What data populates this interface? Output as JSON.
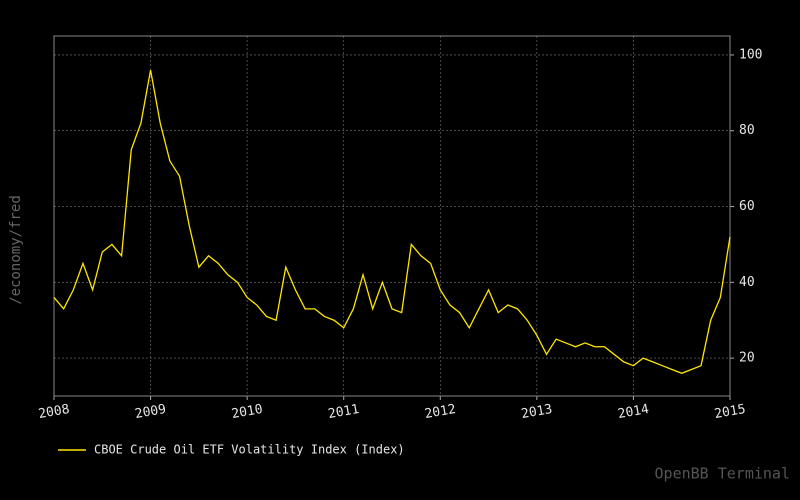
{
  "chart_data": {
    "type": "line",
    "ylabel": "/economy/fred",
    "watermark": "OpenBB Terminal",
    "x": [
      2008.0,
      2008.1,
      2008.2,
      2008.3,
      2008.4,
      2008.5,
      2008.6,
      2008.7,
      2008.8,
      2008.9,
      2009.0,
      2009.1,
      2009.2,
      2009.3,
      2009.4,
      2009.5,
      2009.6,
      2009.7,
      2009.8,
      2009.9,
      2010.0,
      2010.1,
      2010.2,
      2010.3,
      2010.4,
      2010.5,
      2010.6,
      2010.7,
      2010.8,
      2010.9,
      2011.0,
      2011.1,
      2011.2,
      2011.3,
      2011.4,
      2011.5,
      2011.6,
      2011.7,
      2011.8,
      2011.9,
      2012.0,
      2012.1,
      2012.2,
      2012.3,
      2012.4,
      2012.5,
      2012.6,
      2012.7,
      2012.8,
      2012.9,
      2013.0,
      2013.1,
      2013.2,
      2013.3,
      2013.4,
      2013.5,
      2013.6,
      2013.7,
      2013.8,
      2013.9,
      2014.0,
      2014.1,
      2014.2,
      2014.3,
      2014.4,
      2014.5,
      2014.6,
      2014.7,
      2014.8,
      2014.9,
      2015.0
    ],
    "series": [
      {
        "name": "CBOE Crude Oil ETF Volatility Index (Index)",
        "color": "#ffe600",
        "values": [
          36,
          33,
          38,
          45,
          38,
          48,
          50,
          47,
          75,
          82,
          96,
          82,
          72,
          68,
          55,
          44,
          47,
          45,
          42,
          40,
          36,
          34,
          31,
          30,
          44,
          38,
          33,
          33,
          31,
          30,
          28,
          33,
          42,
          33,
          40,
          33,
          32,
          50,
          47,
          45,
          38,
          34,
          32,
          28,
          33,
          38,
          32,
          34,
          33,
          30,
          26,
          21,
          25,
          24,
          23,
          24,
          23,
          23,
          21,
          19,
          18,
          20,
          19,
          18,
          17,
          16,
          17,
          18,
          30,
          36,
          52
        ]
      }
    ],
    "xlim": [
      2008,
      2015
    ],
    "xticks": [
      2008,
      2009,
      2010,
      2011,
      2012,
      2013,
      2014,
      2015
    ],
    "ylim": [
      10,
      105
    ],
    "yticks": [
      20,
      40,
      60,
      80,
      100
    ],
    "grid": true
  }
}
